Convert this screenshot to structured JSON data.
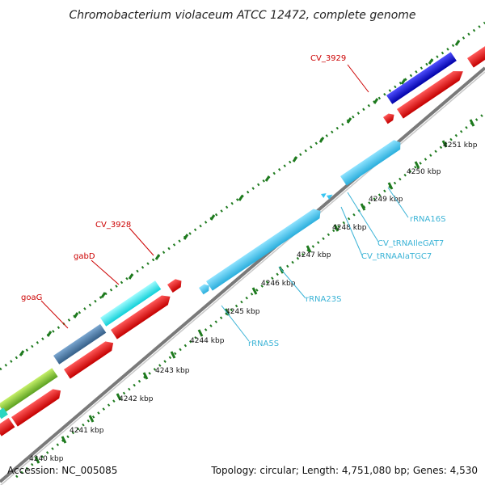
{
  "title": "Chromobacterium violaceum ATCC 12472, complete genome",
  "accession": "Accession: NC_005085",
  "summary": "Topology: circular; Length: 4,751,080 bp; Genes: 4,530",
  "ticks": [
    "4240 kbp",
    "4241 kbp",
    "4242 kbp",
    "4243 kbp",
    "4244 kbp",
    "4245 kbp",
    "4246 kbp",
    "4247 kbp",
    "4248 kbp",
    "4249 kbp",
    "4250 kbp",
    "4251 kbp"
  ],
  "labels": {
    "cv3929": "CV_3929",
    "cv3928": "CV_3928",
    "gabD": "gabD",
    "goaG": "goaG",
    "rrna16s": "rRNA16S",
    "trnaile": "CV_tRNAIleGAT7",
    "trnaala": "CV_tRNAAlaTGC7",
    "rrna23s": "rRNA23S",
    "rrna5s": "rRNA5S"
  },
  "colors": {
    "forward_cds": "#e8141b",
    "rrna": "#39c5f1",
    "trna": "#39c5f1",
    "backbone": "#8c8c8c",
    "tick_marks": "#1e7a1e",
    "blue_gene": "#1010c8",
    "steel_gene": "#4d7fb0",
    "cyan_gene": "#22f0f0",
    "green_gene": "#8fd63a"
  }
}
